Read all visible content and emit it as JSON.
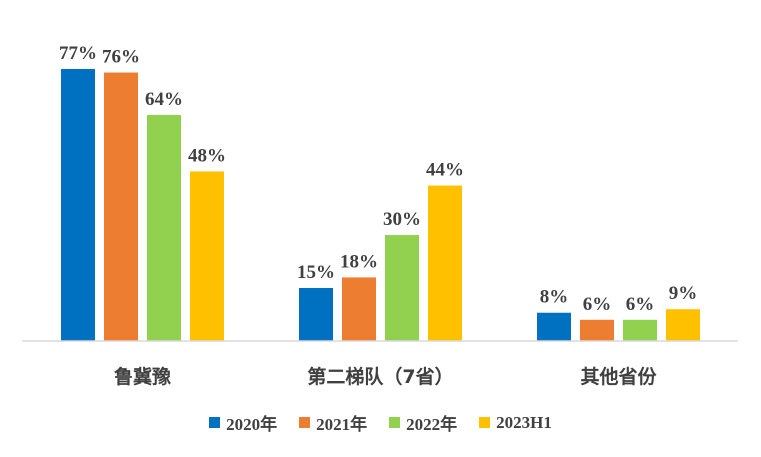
{
  "chart_data": {
    "type": "bar",
    "categories": [
      "鲁冀豫",
      "第二梯队（7省）",
      "其他省份"
    ],
    "series": [
      {
        "name": "2020年",
        "color": "#0070C0",
        "values": [
          77,
          15,
          8
        ],
        "labels": [
          "77%",
          "15%",
          "8%"
        ]
      },
      {
        "name": "2021年",
        "color": "#ED7D31",
        "values": [
          76,
          18,
          6
        ],
        "labels": [
          "76%",
          "18%",
          "6%"
        ]
      },
      {
        "name": "2022年",
        "color": "#92D050",
        "values": [
          64,
          30,
          6
        ],
        "labels": [
          "64%",
          "30%",
          "6%"
        ]
      },
      {
        "name": "2023H1",
        "color": "#FFC000",
        "values": [
          48,
          44,
          9
        ],
        "labels": [
          "48%",
          "44%",
          "9%"
        ]
      }
    ],
    "ylim": [
      0,
      77
    ],
    "grid": false,
    "legend_position": "bottom",
    "title": "",
    "xlabel": "",
    "ylabel": ""
  }
}
